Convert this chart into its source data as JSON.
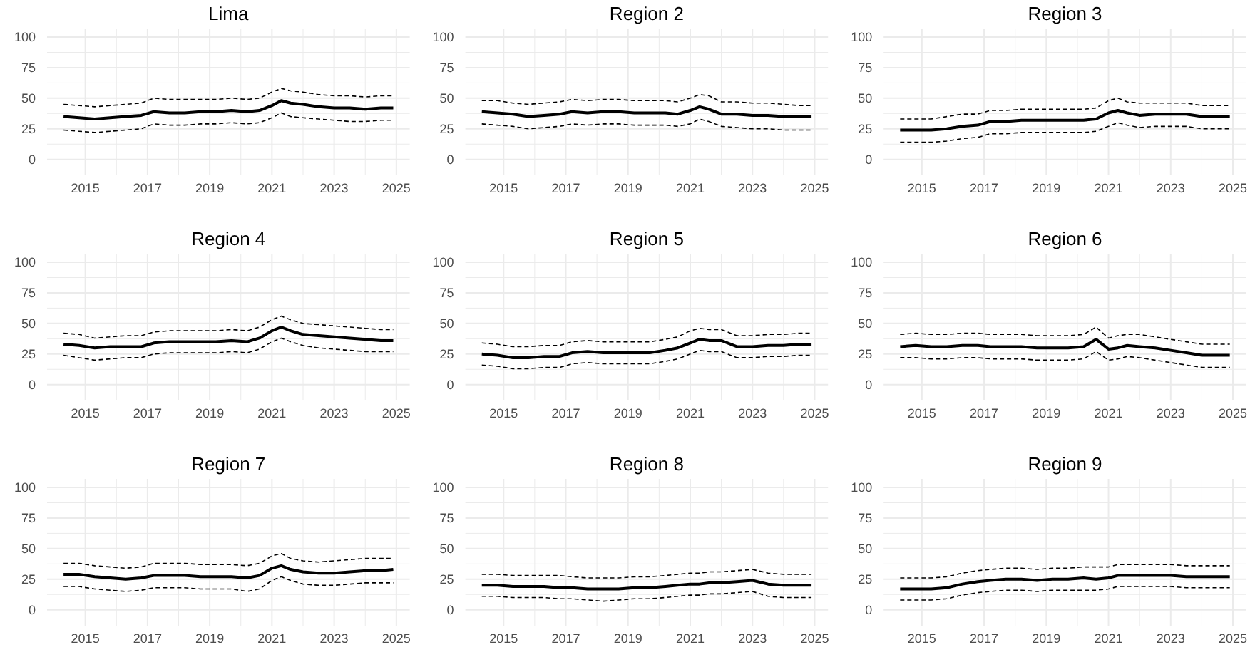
{
  "chart_data": [
    {
      "type": "line",
      "title": "Lima",
      "x": [
        2014.3,
        2014.8,
        2015.3,
        2015.8,
        2016.3,
        2016.8,
        2017.2,
        2017.7,
        2018.2,
        2018.7,
        2019.2,
        2019.7,
        2020.2,
        2020.6,
        2021.0,
        2021.3,
        2021.6,
        2022.0,
        2022.5,
        2023.0,
        2023.5,
        2024.0,
        2024.5,
        2024.9
      ],
      "xlim": [
        2013.77,
        2025.43
      ],
      "xticks": [
        2015,
        {
          "value": 2016,
          "label": null
        },
        2017,
        {
          "value": 2018,
          "label": null
        },
        2019,
        {
          "value": 2020,
          "label": null
        },
        2021,
        {
          "value": 2022,
          "label": null
        },
        2023,
        {
          "value": 2024,
          "label": null
        },
        2025
      ],
      "ylim": [
        -13,
        107
      ],
      "yticks": [
        0,
        {
          "value": 12.5,
          "label": null
        },
        25,
        {
          "value": 37.5,
          "label": null
        },
        50,
        {
          "value": 62.5,
          "label": null
        },
        75,
        {
          "value": 87.5,
          "label": null
        },
        100
      ],
      "grid": true,
      "series": [
        {
          "color": "#000000",
          "line_style": "solid",
          "values": [
            35,
            34,
            33,
            34,
            35,
            36,
            39,
            38,
            38,
            39,
            39,
            40,
            39,
            40,
            44,
            48,
            46,
            45,
            43,
            42,
            42,
            41,
            42,
            42
          ]
        },
        {
          "color": "#000000",
          "line_style": "dashed",
          "values": [
            24,
            23,
            22,
            23,
            24,
            25,
            29,
            28,
            28,
            29,
            29,
            30,
            29,
            30,
            34,
            38,
            35,
            34,
            33,
            32,
            31,
            31,
            32,
            32
          ]
        },
        {
          "color": "#000000",
          "line_style": "dashed",
          "values": [
            45,
            44,
            43,
            44,
            45,
            46,
            50,
            49,
            49,
            49,
            49,
            50,
            49,
            50,
            55,
            58,
            56,
            55,
            53,
            52,
            52,
            51,
            52,
            52
          ]
        }
      ]
    },
    {
      "type": "line",
      "title": "Region 2",
      "x": [
        2014.3,
        2014.8,
        2015.3,
        2015.8,
        2016.3,
        2016.8,
        2017.2,
        2017.7,
        2018.2,
        2018.7,
        2019.2,
        2019.7,
        2020.2,
        2020.6,
        2021.0,
        2021.3,
        2021.6,
        2022.0,
        2022.5,
        2023.0,
        2023.5,
        2024.0,
        2024.5,
        2024.9
      ],
      "xlim": [
        2013.77,
        2025.43
      ],
      "xticks": [
        2015,
        {
          "value": 2016,
          "label": null
        },
        2017,
        {
          "value": 2018,
          "label": null
        },
        2019,
        {
          "value": 2020,
          "label": null
        },
        2021,
        {
          "value": 2022,
          "label": null
        },
        2023,
        {
          "value": 2024,
          "label": null
        },
        2025
      ],
      "ylim": [
        -13,
        107
      ],
      "yticks": [
        0,
        {
          "value": 12.5,
          "label": null
        },
        25,
        {
          "value": 37.5,
          "label": null
        },
        50,
        {
          "value": 62.5,
          "label": null
        },
        75,
        {
          "value": 87.5,
          "label": null
        },
        100
      ],
      "grid": true,
      "series": [
        {
          "color": "#000000",
          "line_style": "solid",
          "values": [
            39,
            38,
            37,
            35,
            36,
            37,
            39,
            38,
            39,
            39,
            38,
            38,
            38,
            37,
            40,
            43,
            41,
            37,
            37,
            36,
            36,
            35,
            35,
            35
          ]
        },
        {
          "color": "#000000",
          "line_style": "dashed",
          "values": [
            29,
            28,
            27,
            25,
            26,
            27,
            29,
            28,
            29,
            29,
            28,
            28,
            28,
            27,
            29,
            33,
            31,
            27,
            26,
            25,
            25,
            24,
            24,
            24
          ]
        },
        {
          "color": "#000000",
          "line_style": "dashed",
          "values": [
            48,
            48,
            46,
            45,
            46,
            47,
            49,
            48,
            49,
            49,
            48,
            48,
            48,
            47,
            50,
            53,
            52,
            47,
            47,
            46,
            46,
            45,
            44,
            44
          ]
        }
      ]
    },
    {
      "type": "line",
      "title": "Region 3",
      "x": [
        2014.3,
        2014.8,
        2015.3,
        2015.8,
        2016.3,
        2016.8,
        2017.2,
        2017.7,
        2018.2,
        2018.7,
        2019.2,
        2019.7,
        2020.2,
        2020.6,
        2021.0,
        2021.3,
        2021.6,
        2022.0,
        2022.5,
        2023.0,
        2023.5,
        2024.0,
        2024.5,
        2024.9
      ],
      "xlim": [
        2013.77,
        2025.43
      ],
      "xticks": [
        2015,
        {
          "value": 2016,
          "label": null
        },
        2017,
        {
          "value": 2018,
          "label": null
        },
        2019,
        {
          "value": 2020,
          "label": null
        },
        2021,
        {
          "value": 2022,
          "label": null
        },
        2023,
        {
          "value": 2024,
          "label": null
        },
        2025
      ],
      "ylim": [
        -13,
        107
      ],
      "yticks": [
        0,
        {
          "value": 12.5,
          "label": null
        },
        25,
        {
          "value": 37.5,
          "label": null
        },
        50,
        {
          "value": 62.5,
          "label": null
        },
        75,
        {
          "value": 87.5,
          "label": null
        },
        100
      ],
      "grid": true,
      "series": [
        {
          "color": "#000000",
          "line_style": "solid",
          "values": [
            24,
            24,
            24,
            25,
            27,
            28,
            31,
            31,
            32,
            32,
            32,
            32,
            32,
            33,
            38,
            40,
            38,
            36,
            37,
            37,
            37,
            35,
            35,
            35
          ]
        },
        {
          "color": "#000000",
          "line_style": "dashed",
          "values": [
            14,
            14,
            14,
            15,
            17,
            18,
            21,
            21,
            22,
            22,
            22,
            22,
            22,
            23,
            27,
            30,
            28,
            26,
            27,
            27,
            27,
            25,
            25,
            25
          ]
        },
        {
          "color": "#000000",
          "line_style": "dashed",
          "values": [
            33,
            33,
            33,
            35,
            37,
            37,
            40,
            40,
            41,
            41,
            41,
            41,
            41,
            42,
            48,
            50,
            47,
            46,
            46,
            46,
            46,
            44,
            44,
            44
          ]
        }
      ]
    },
    {
      "type": "line",
      "title": "Region 4",
      "x": [
        2014.3,
        2014.8,
        2015.3,
        2015.8,
        2016.3,
        2016.8,
        2017.2,
        2017.7,
        2018.2,
        2018.7,
        2019.2,
        2019.7,
        2020.2,
        2020.6,
        2021.0,
        2021.3,
        2021.6,
        2022.0,
        2022.5,
        2023.0,
        2023.5,
        2024.0,
        2024.5,
        2024.9
      ],
      "xlim": [
        2013.77,
        2025.43
      ],
      "xticks": [
        2015,
        {
          "value": 2016,
          "label": null
        },
        2017,
        {
          "value": 2018,
          "label": null
        },
        2019,
        {
          "value": 2020,
          "label": null
        },
        2021,
        {
          "value": 2022,
          "label": null
        },
        2023,
        {
          "value": 2024,
          "label": null
        },
        2025
      ],
      "ylim": [
        -13,
        107
      ],
      "yticks": [
        0,
        {
          "value": 12.5,
          "label": null
        },
        25,
        {
          "value": 37.5,
          "label": null
        },
        50,
        {
          "value": 62.5,
          "label": null
        },
        75,
        {
          "value": 87.5,
          "label": null
        },
        100
      ],
      "grid": true,
      "series": [
        {
          "color": "#000000",
          "line_style": "solid",
          "values": [
            33,
            32,
            30,
            31,
            31,
            31,
            34,
            35,
            35,
            35,
            35,
            36,
            35,
            38,
            44,
            47,
            44,
            41,
            40,
            39,
            38,
            37,
            36,
            36
          ]
        },
        {
          "color": "#000000",
          "line_style": "dashed",
          "values": [
            24,
            22,
            20,
            21,
            22,
            22,
            25,
            26,
            26,
            26,
            26,
            27,
            26,
            29,
            35,
            38,
            35,
            32,
            30,
            29,
            28,
            27,
            27,
            27
          ]
        },
        {
          "color": "#000000",
          "line_style": "dashed",
          "values": [
            42,
            41,
            38,
            39,
            40,
            40,
            43,
            44,
            44,
            44,
            44,
            45,
            44,
            47,
            53,
            56,
            53,
            50,
            49,
            48,
            47,
            46,
            45,
            45
          ]
        }
      ]
    },
    {
      "type": "line",
      "title": "Region 5",
      "x": [
        2014.3,
        2014.8,
        2015.3,
        2015.8,
        2016.3,
        2016.8,
        2017.2,
        2017.7,
        2018.2,
        2018.7,
        2019.2,
        2019.7,
        2020.2,
        2020.6,
        2021.0,
        2021.3,
        2021.6,
        2022.0,
        2022.5,
        2023.0,
        2023.5,
        2024.0,
        2024.5,
        2024.9
      ],
      "xlim": [
        2013.77,
        2025.43
      ],
      "xticks": [
        2015,
        {
          "value": 2016,
          "label": null
        },
        2017,
        {
          "value": 2018,
          "label": null
        },
        2019,
        {
          "value": 2020,
          "label": null
        },
        2021,
        {
          "value": 2022,
          "label": null
        },
        2023,
        {
          "value": 2024,
          "label": null
        },
        2025
      ],
      "ylim": [
        -13,
        107
      ],
      "yticks": [
        0,
        {
          "value": 12.5,
          "label": null
        },
        25,
        {
          "value": 37.5,
          "label": null
        },
        50,
        {
          "value": 62.5,
          "label": null
        },
        75,
        {
          "value": 87.5,
          "label": null
        },
        100
      ],
      "grid": true,
      "series": [
        {
          "color": "#000000",
          "line_style": "solid",
          "values": [
            25,
            24,
            22,
            22,
            23,
            23,
            26,
            27,
            26,
            26,
            26,
            26,
            28,
            30,
            34,
            37,
            36,
            36,
            31,
            31,
            32,
            32,
            33,
            33
          ]
        },
        {
          "color": "#000000",
          "line_style": "dashed",
          "values": [
            16,
            15,
            13,
            13,
            14,
            14,
            17,
            18,
            17,
            17,
            17,
            17,
            19,
            21,
            25,
            28,
            27,
            27,
            22,
            22,
            23,
            23,
            24,
            24
          ]
        },
        {
          "color": "#000000",
          "line_style": "dashed",
          "values": [
            34,
            33,
            31,
            31,
            32,
            32,
            35,
            36,
            35,
            35,
            35,
            35,
            37,
            39,
            44,
            46,
            45,
            45,
            40,
            40,
            41,
            41,
            42,
            42
          ]
        }
      ]
    },
    {
      "type": "line",
      "title": "Region 6",
      "x": [
        2014.3,
        2014.8,
        2015.3,
        2015.8,
        2016.3,
        2016.8,
        2017.2,
        2017.7,
        2018.2,
        2018.7,
        2019.2,
        2019.7,
        2020.2,
        2020.6,
        2021.0,
        2021.3,
        2021.6,
        2022.0,
        2022.5,
        2023.0,
        2023.5,
        2024.0,
        2024.5,
        2024.9
      ],
      "xlim": [
        2013.77,
        2025.43
      ],
      "xticks": [
        2015,
        {
          "value": 2016,
          "label": null
        },
        2017,
        {
          "value": 2018,
          "label": null
        },
        2019,
        {
          "value": 2020,
          "label": null
        },
        2021,
        {
          "value": 2022,
          "label": null
        },
        2023,
        {
          "value": 2024,
          "label": null
        },
        2025
      ],
      "ylim": [
        -13,
        107
      ],
      "yticks": [
        0,
        {
          "value": 12.5,
          "label": null
        },
        25,
        {
          "value": 37.5,
          "label": null
        },
        50,
        {
          "value": 62.5,
          "label": null
        },
        75,
        {
          "value": 87.5,
          "label": null
        },
        100
      ],
      "grid": true,
      "series": [
        {
          "color": "#000000",
          "line_style": "solid",
          "values": [
            31,
            32,
            31,
            31,
            32,
            32,
            31,
            31,
            31,
            30,
            30,
            30,
            31,
            37,
            29,
            30,
            32,
            31,
            30,
            28,
            26,
            24,
            24,
            24
          ]
        },
        {
          "color": "#000000",
          "line_style": "dashed",
          "values": [
            22,
            22,
            21,
            21,
            22,
            22,
            21,
            21,
            21,
            20,
            20,
            20,
            21,
            27,
            20,
            21,
            23,
            22,
            20,
            18,
            16,
            14,
            14,
            14
          ]
        },
        {
          "color": "#000000",
          "line_style": "dashed",
          "values": [
            41,
            42,
            41,
            41,
            42,
            42,
            41,
            41,
            41,
            40,
            40,
            40,
            41,
            47,
            38,
            40,
            41,
            41,
            39,
            37,
            35,
            33,
            33,
            33
          ]
        }
      ]
    },
    {
      "type": "line",
      "title": "Region 7",
      "x": [
        2014.3,
        2014.8,
        2015.3,
        2015.8,
        2016.3,
        2016.8,
        2017.2,
        2017.7,
        2018.2,
        2018.7,
        2019.2,
        2019.7,
        2020.2,
        2020.6,
        2021.0,
        2021.3,
        2021.6,
        2022.0,
        2022.5,
        2023.0,
        2023.5,
        2024.0,
        2024.5,
        2024.9
      ],
      "xlim": [
        2013.77,
        2025.43
      ],
      "xticks": [
        2015,
        {
          "value": 2016,
          "label": null
        },
        2017,
        {
          "value": 2018,
          "label": null
        },
        2019,
        {
          "value": 2020,
          "label": null
        },
        2021,
        {
          "value": 2022,
          "label": null
        },
        2023,
        {
          "value": 2024,
          "label": null
        },
        2025
      ],
      "ylim": [
        -13,
        107
      ],
      "yticks": [
        0,
        {
          "value": 12.5,
          "label": null
        },
        25,
        {
          "value": 37.5,
          "label": null
        },
        50,
        {
          "value": 62.5,
          "label": null
        },
        75,
        {
          "value": 87.5,
          "label": null
        },
        100
      ],
      "grid": true,
      "series": [
        {
          "color": "#000000",
          "line_style": "solid",
          "values": [
            29,
            29,
            27,
            26,
            25,
            26,
            28,
            28,
            28,
            27,
            27,
            27,
            26,
            28,
            34,
            36,
            33,
            31,
            30,
            30,
            31,
            32,
            32,
            33
          ]
        },
        {
          "color": "#000000",
          "line_style": "dashed",
          "values": [
            19,
            19,
            17,
            16,
            15,
            16,
            18,
            18,
            18,
            17,
            17,
            17,
            15,
            17,
            24,
            27,
            24,
            21,
            20,
            20,
            21,
            22,
            22,
            22
          ]
        },
        {
          "color": "#000000",
          "line_style": "dashed",
          "values": [
            38,
            38,
            36,
            35,
            34,
            35,
            38,
            38,
            38,
            37,
            37,
            37,
            36,
            38,
            44,
            46,
            42,
            40,
            39,
            40,
            41,
            42,
            42,
            42
          ]
        }
      ]
    },
    {
      "type": "line",
      "title": "Region 8",
      "x": [
        2014.3,
        2014.8,
        2015.3,
        2015.8,
        2016.3,
        2016.8,
        2017.2,
        2017.7,
        2018.2,
        2018.7,
        2019.2,
        2019.7,
        2020.2,
        2020.6,
        2021.0,
        2021.3,
        2021.6,
        2022.0,
        2022.5,
        2023.0,
        2023.5,
        2024.0,
        2024.5,
        2024.9
      ],
      "xlim": [
        2013.77,
        2025.43
      ],
      "xticks": [
        2015,
        {
          "value": 2016,
          "label": null
        },
        2017,
        {
          "value": 2018,
          "label": null
        },
        2019,
        {
          "value": 2020,
          "label": null
        },
        2021,
        {
          "value": 2022,
          "label": null
        },
        2023,
        {
          "value": 2024,
          "label": null
        },
        2025
      ],
      "ylim": [
        -13,
        107
      ],
      "yticks": [
        0,
        {
          "value": 12.5,
          "label": null
        },
        25,
        {
          "value": 37.5,
          "label": null
        },
        50,
        {
          "value": 62.5,
          "label": null
        },
        75,
        {
          "value": 87.5,
          "label": null
        },
        100
      ],
      "grid": true,
      "series": [
        {
          "color": "#000000",
          "line_style": "solid",
          "values": [
            20,
            20,
            19,
            19,
            19,
            18,
            18,
            17,
            17,
            17,
            18,
            18,
            19,
            20,
            21,
            21,
            22,
            22,
            23,
            24,
            21,
            20,
            20,
            20
          ]
        },
        {
          "color": "#000000",
          "line_style": "dashed",
          "values": [
            11,
            11,
            10,
            10,
            10,
            9,
            9,
            8,
            7,
            8,
            9,
            9,
            10,
            11,
            12,
            12,
            13,
            13,
            14,
            15,
            11,
            10,
            10,
            10
          ]
        },
        {
          "color": "#000000",
          "line_style": "dashed",
          "values": [
            29,
            29,
            28,
            28,
            28,
            28,
            27,
            26,
            26,
            26,
            27,
            27,
            28,
            29,
            30,
            30,
            31,
            31,
            32,
            33,
            30,
            29,
            29,
            29
          ]
        }
      ]
    },
    {
      "type": "line",
      "title": "Region 9",
      "x": [
        2014.3,
        2014.8,
        2015.3,
        2015.8,
        2016.3,
        2016.8,
        2017.2,
        2017.7,
        2018.2,
        2018.7,
        2019.2,
        2019.7,
        2020.2,
        2020.6,
        2021.0,
        2021.3,
        2021.6,
        2022.0,
        2022.5,
        2023.0,
        2023.5,
        2024.0,
        2024.5,
        2024.9
      ],
      "xlim": [
        2013.77,
        2025.43
      ],
      "xticks": [
        2015,
        {
          "value": 2016,
          "label": null
        },
        2017,
        {
          "value": 2018,
          "label": null
        },
        2019,
        {
          "value": 2020,
          "label": null
        },
        2021,
        {
          "value": 2022,
          "label": null
        },
        2023,
        {
          "value": 2024,
          "label": null
        },
        2025
      ],
      "ylim": [
        -13,
        107
      ],
      "yticks": [
        0,
        {
          "value": 12.5,
          "label": null
        },
        25,
        {
          "value": 37.5,
          "label": null
        },
        50,
        {
          "value": 62.5,
          "label": null
        },
        75,
        {
          "value": 87.5,
          "label": null
        },
        100
      ],
      "grid": true,
      "series": [
        {
          "color": "#000000",
          "line_style": "solid",
          "values": [
            17,
            17,
            17,
            18,
            21,
            23,
            24,
            25,
            25,
            24,
            25,
            25,
            26,
            25,
            26,
            28,
            28,
            28,
            28,
            28,
            27,
            27,
            27,
            27
          ]
        },
        {
          "color": "#000000",
          "line_style": "dashed",
          "values": [
            8,
            8,
            8,
            9,
            12,
            14,
            15,
            16,
            16,
            15,
            16,
            16,
            16,
            16,
            17,
            19,
            19,
            19,
            19,
            19,
            18,
            18,
            18,
            18
          ]
        },
        {
          "color": "#000000",
          "line_style": "dashed",
          "values": [
            26,
            26,
            26,
            27,
            30,
            32,
            33,
            34,
            34,
            33,
            34,
            34,
            35,
            35,
            35,
            37,
            37,
            37,
            37,
            37,
            36,
            36,
            36,
            36
          ]
        }
      ]
    }
  ]
}
